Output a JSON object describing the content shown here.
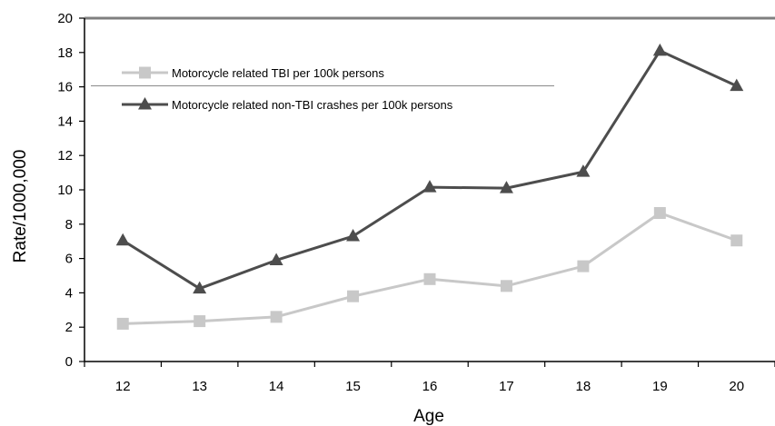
{
  "chart_data": {
    "type": "line",
    "title": "",
    "xlabel": "Age",
    "ylabel": "Rate/1000,000",
    "categories": [
      "12",
      "13",
      "14",
      "15",
      "16",
      "17",
      "18",
      "19",
      "20"
    ],
    "ylim": [
      0,
      20
    ],
    "yticks": [
      "0",
      "2",
      "4",
      "6",
      "8",
      "10",
      "12",
      "14",
      "16",
      "18",
      "20"
    ],
    "grid": false,
    "legend_position": "top-left",
    "series": [
      {
        "name": "Motorcycle related TBI per 100k persons",
        "values": [
          2.2,
          2.35,
          2.6,
          3.8,
          4.8,
          4.4,
          5.55,
          8.65,
          7.05
        ],
        "color": "#c8c8c8",
        "marker": "square"
      },
      {
        "name": "Motorcycle related non-TBI crashes per 100k persons",
        "values": [
          7.05,
          4.25,
          5.9,
          7.3,
          10.15,
          10.1,
          11.05,
          18.1,
          16.05
        ],
        "color": "#4d4d4d",
        "marker": "triangle"
      }
    ]
  }
}
